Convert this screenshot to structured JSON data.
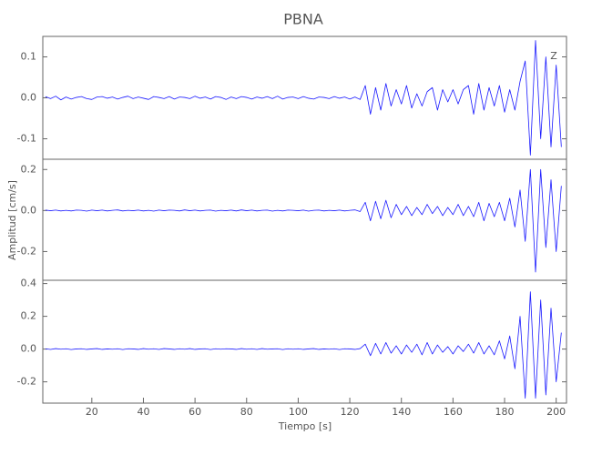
{
  "chart_data": [
    {
      "type": "line",
      "title": "PBNA",
      "annotation": "Z",
      "color": "#1a1aff",
      "x": [
        2,
        4,
        6,
        8,
        10,
        12,
        14,
        16,
        18,
        20,
        22,
        24,
        26,
        28,
        30,
        32,
        34,
        36,
        38,
        40,
        42,
        44,
        46,
        48,
        50,
        52,
        54,
        56,
        58,
        60,
        62,
        64,
        66,
        68,
        70,
        72,
        74,
        76,
        78,
        80,
        82,
        84,
        86,
        88,
        90,
        92,
        94,
        96,
        98,
        100,
        102,
        104,
        106,
        108,
        110,
        112,
        114,
        116,
        118,
        120,
        122,
        124,
        126,
        128,
        130,
        132,
        134,
        136,
        138,
        140,
        142,
        144,
        146,
        148,
        150,
        152,
        154,
        156,
        158,
        160,
        162,
        164,
        166,
        168,
        170,
        172,
        174,
        176,
        178,
        180,
        182,
        184,
        186,
        188,
        190,
        192,
        194,
        196,
        198,
        200,
        202
      ],
      "values": [
        0.003,
        -0.002,
        0.004,
        -0.005,
        0.002,
        -0.003,
        0.001,
        0.003,
        -0.002,
        -0.004,
        0.002,
        0.003,
        -0.001,
        0.002,
        -0.003,
        0.001,
        0.004,
        -0.002,
        0.002,
        -0.001,
        -0.004,
        0.003,
        0.001,
        -0.002,
        0.003,
        -0.003,
        0.002,
        0.001,
        -0.002,
        0.004,
        -0.001,
        0.002,
        -0.003,
        0.003,
        0.001,
        -0.004,
        0.002,
        -0.002,
        0.003,
        0.001,
        -0.003,
        0.002,
        -0.001,
        0.003,
        -0.002,
        0.004,
        -0.003,
        0.001,
        0.002,
        -0.002,
        0.003,
        -0.001,
        -0.003,
        0.002,
        0.001,
        -0.002,
        0.003,
        -0.001,
        0.002,
        -0.003,
        0.002,
        -0.004,
        0.03,
        -0.04,
        0.025,
        -0.03,
        0.035,
        -0.02,
        0.02,
        -0.015,
        0.03,
        -0.025,
        0.01,
        -0.02,
        0.015,
        0.025,
        -0.03,
        0.02,
        -0.01,
        0.02,
        -0.015,
        0.02,
        0.03,
        -0.04,
        0.035,
        -0.03,
        0.025,
        -0.02,
        0.03,
        -0.035,
        0.02,
        -0.03,
        0.04,
        0.09,
        -0.14,
        0.14,
        -0.1,
        0.1,
        -0.12,
        0.08,
        -0.12
      ],
      "xlim": [
        1,
        204
      ],
      "ylim": [
        -0.15,
        0.15
      ],
      "yticks": [
        0.1,
        {
          "value": 0,
          "label": "0.0"
        },
        -0.1
      ]
    },
    {
      "type": "line",
      "ylabel": "Amplitud [cm/s]",
      "color": "#1a1aff",
      "x": [
        2,
        4,
        6,
        8,
        10,
        12,
        14,
        16,
        18,
        20,
        22,
        24,
        26,
        28,
        30,
        32,
        34,
        36,
        38,
        40,
        42,
        44,
        46,
        48,
        50,
        52,
        54,
        56,
        58,
        60,
        62,
        64,
        66,
        68,
        70,
        72,
        74,
        76,
        78,
        80,
        82,
        84,
        86,
        88,
        90,
        92,
        94,
        96,
        98,
        100,
        102,
        104,
        106,
        108,
        110,
        112,
        114,
        116,
        118,
        120,
        122,
        124,
        126,
        128,
        130,
        132,
        134,
        136,
        138,
        140,
        142,
        144,
        146,
        148,
        150,
        152,
        154,
        156,
        158,
        160,
        162,
        164,
        166,
        168,
        170,
        172,
        174,
        176,
        178,
        180,
        182,
        184,
        186,
        188,
        190,
        192,
        194,
        196,
        198,
        200,
        202
      ],
      "values": [
        0.002,
        -0.001,
        0.002,
        -0.002,
        0.001,
        -0.002,
        0.002,
        0.001,
        -0.003,
        0.002,
        -0.001,
        0.002,
        -0.002,
        0.001,
        0.003,
        -0.002,
        0.001,
        -0.001,
        0.002,
        -0.002,
        0.001,
        -0.003,
        0.002,
        -0.001,
        0.002,
        0.001,
        -0.002,
        0.003,
        -0.001,
        0.002,
        -0.002,
        0.001,
        0.002,
        -0.003,
        0.001,
        -0.001,
        0.002,
        -0.002,
        0.003,
        -0.001,
        0.002,
        -0.002,
        0.001,
        0.002,
        -0.003,
        0.001,
        -0.002,
        0.002,
        0.001,
        -0.001,
        0.002,
        -0.003,
        0.001,
        0.002,
        -0.002,
        0.001,
        -0.001,
        0.002,
        -0.002,
        0.001,
        0.003,
        -0.005,
        0.04,
        -0.05,
        0.045,
        -0.04,
        0.05,
        -0.035,
        0.03,
        -0.02,
        0.02,
        -0.025,
        0.015,
        -0.02,
        0.03,
        -0.015,
        0.02,
        -0.025,
        0.015,
        -0.02,
        0.03,
        -0.025,
        0.02,
        -0.03,
        0.04,
        -0.05,
        0.035,
        -0.03,
        0.04,
        -0.05,
        0.06,
        -0.08,
        0.1,
        -0.15,
        0.2,
        -0.3,
        0.2,
        -0.18,
        0.15,
        -0.2,
        0.12
      ],
      "xlim": [
        1,
        204
      ],
      "ylim": [
        -0.34,
        0.25
      ],
      "yticks": [
        0.2,
        {
          "value": 0,
          "label": "0.0"
        },
        -0.2
      ]
    },
    {
      "type": "line",
      "xlabel": "Tiempo [s]",
      "color": "#1a1aff",
      "x": [
        2,
        4,
        6,
        8,
        10,
        12,
        14,
        16,
        18,
        20,
        22,
        24,
        26,
        28,
        30,
        32,
        34,
        36,
        38,
        40,
        42,
        44,
        46,
        48,
        50,
        52,
        54,
        56,
        58,
        60,
        62,
        64,
        66,
        68,
        70,
        72,
        74,
        76,
        78,
        80,
        82,
        84,
        86,
        88,
        90,
        92,
        94,
        96,
        98,
        100,
        102,
        104,
        106,
        108,
        110,
        112,
        114,
        116,
        118,
        120,
        122,
        124,
        126,
        128,
        130,
        132,
        134,
        136,
        138,
        140,
        142,
        144,
        146,
        148,
        150,
        152,
        154,
        156,
        158,
        160,
        162,
        164,
        166,
        168,
        170,
        172,
        174,
        176,
        178,
        180,
        182,
        184,
        186,
        188,
        190,
        192,
        194,
        196,
        198,
        200,
        202
      ],
      "values": [
        0.002,
        -0.002,
        0.003,
        -0.001,
        0.002,
        -0.003,
        0.001,
        0.002,
        -0.002,
        0.001,
        0.003,
        -0.002,
        0.001,
        -0.001,
        0.002,
        -0.003,
        0.002,
        0.001,
        -0.002,
        0.003,
        -0.001,
        0.002,
        -0.002,
        0.003,
        0.001,
        -0.002,
        0.002,
        -0.001,
        0.003,
        -0.002,
        0.001,
        0.002,
        -0.003,
        0.002,
        -0.001,
        0.002,
        0.001,
        -0.002,
        0.003,
        -0.001,
        0.002,
        -0.002,
        0.003,
        -0.001,
        0.001,
        0.002,
        -0.003,
        0.002,
        -0.001,
        0.002,
        -0.002,
        0.001,
        0.003,
        -0.002,
        0.001,
        -0.001,
        0.002,
        -0.003,
        0.002,
        0.001,
        -0.002,
        0.003,
        0.03,
        -0.04,
        0.035,
        -0.03,
        0.04,
        -0.025,
        0.02,
        -0.03,
        0.025,
        -0.02,
        0.03,
        -0.035,
        0.04,
        -0.03,
        0.025,
        -0.02,
        0.015,
        -0.03,
        0.02,
        -0.015,
        0.03,
        -0.025,
        0.04,
        -0.03,
        0.02,
        -0.035,
        0.05,
        -0.06,
        0.08,
        -0.12,
        0.2,
        -0.3,
        0.35,
        -0.3,
        0.3,
        -0.28,
        0.25,
        -0.2,
        0.1
      ],
      "xlim": [
        1,
        204
      ],
      "ylim": [
        -0.33,
        0.42
      ],
      "yticks": [
        0.4,
        0.2,
        {
          "value": 0,
          "label": "0.0"
        },
        -0.2
      ],
      "xticks": [
        20,
        40,
        60,
        80,
        100,
        120,
        140,
        160,
        180,
        200
      ]
    }
  ]
}
